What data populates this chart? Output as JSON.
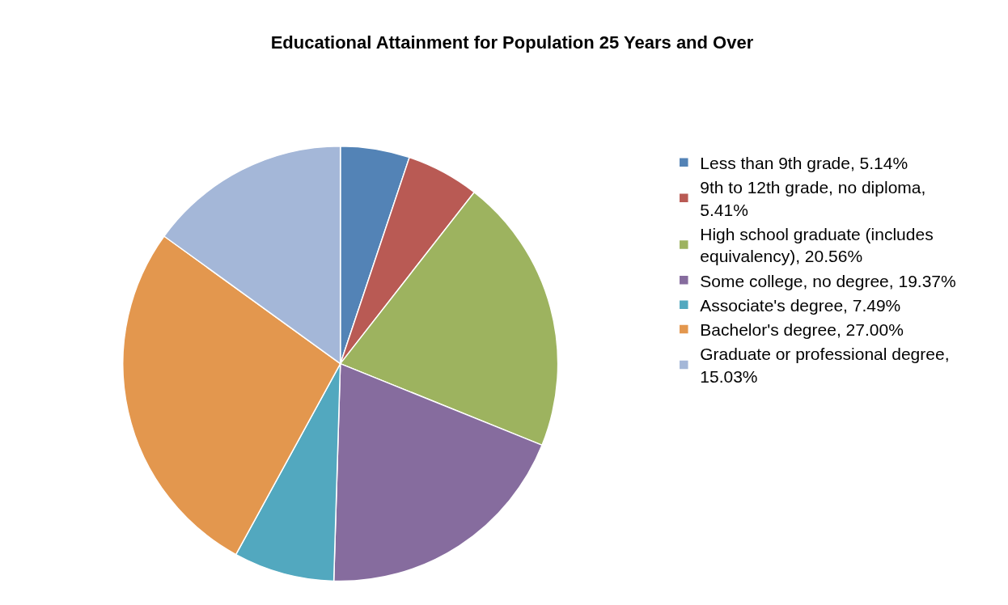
{
  "chart_data": {
    "type": "pie",
    "title": "Educational Attainment for Population 25 Years and Over",
    "categories": [
      "Less than 9th grade, 5.14%",
      "9th to 12th grade, no diploma, 5.41%",
      "High school graduate (includes equivalency), 20.56%",
      "Some college, no degree, 19.37%",
      "Associate's degree, 7.49%",
      "Bachelor's degree, 27.00%",
      "Graduate or professional degree, 15.03%"
    ],
    "values": [
      5.14,
      5.41,
      20.56,
      19.37,
      7.49,
      27.0,
      15.03
    ],
    "colors": [
      "#5383b6",
      "#b95a54",
      "#9db35f",
      "#866c9e",
      "#52a8bf",
      "#e3974e",
      "#a4b7d8"
    ],
    "legend": "right"
  }
}
